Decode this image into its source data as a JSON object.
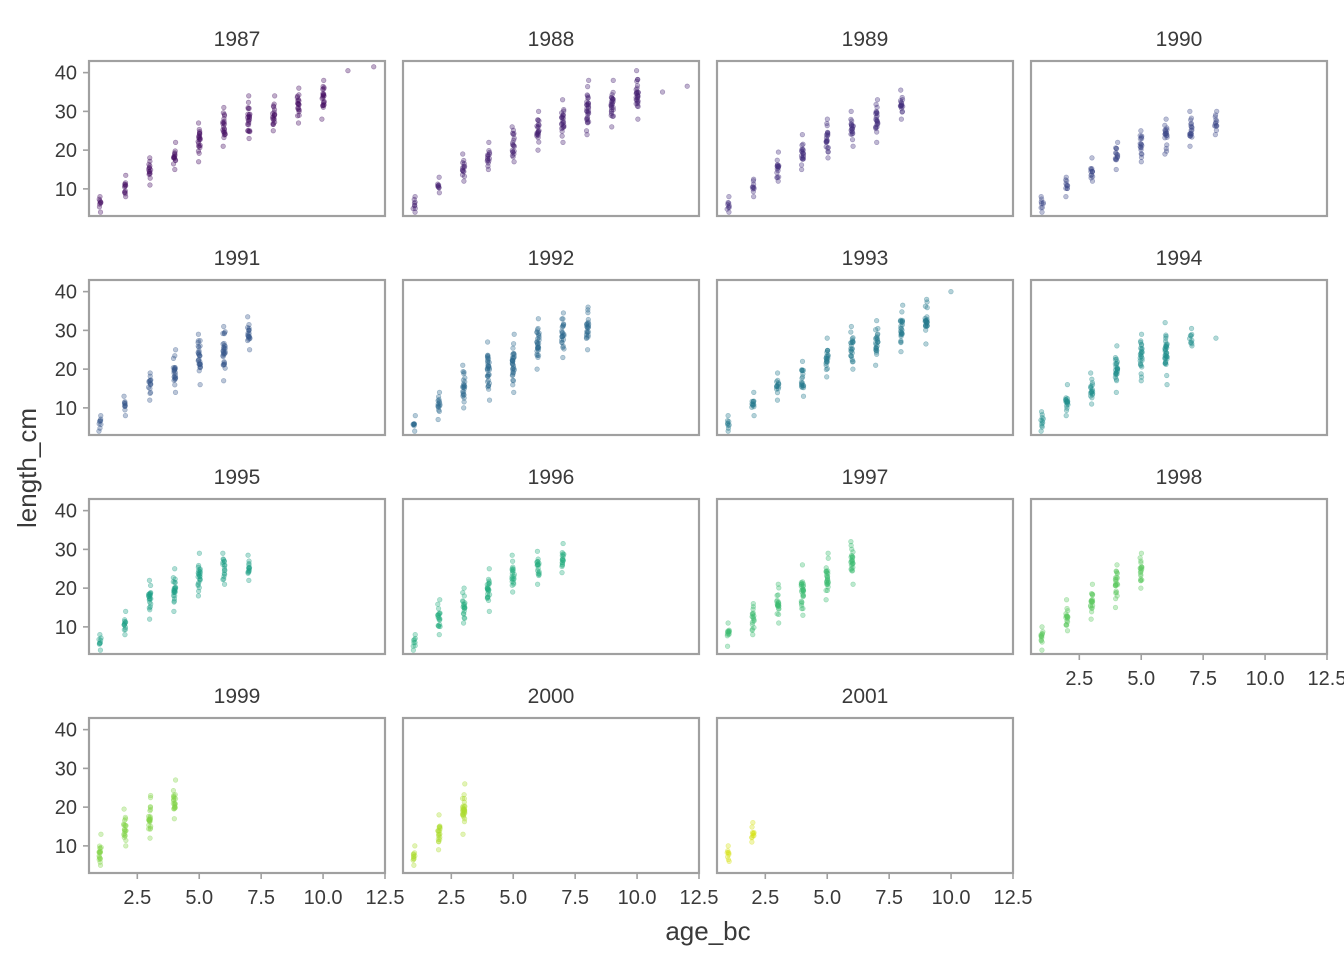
{
  "chart_data": {
    "type": "scatter",
    "layout": "faceted grid, 4 columns",
    "xlabel": "age_bc",
    "ylabel": "length_cm",
    "xlim": [
      0.55,
      12.5
    ],
    "ylim": [
      3,
      43
    ],
    "x_ticks": [
      2.5,
      5.0,
      7.5,
      10.0,
      12.5
    ],
    "x_tick_labels": [
      "2.5",
      "5.0",
      "7.5",
      "10.0",
      "12.5"
    ],
    "y_ticks": [
      10,
      20,
      30,
      40
    ],
    "y_tick_labels": [
      "10",
      "20",
      "30",
      "40"
    ],
    "point_alpha": 0.35,
    "color_scale": "viridis by year (1987 dark purple → 2001 yellow)",
    "panels": [
      {
        "label": "1987",
        "color": "#471063",
        "groups": [
          [
            1,
            4,
            6,
            8
          ],
          [
            2,
            8,
            8,
            13.5
          ],
          [
            3,
            11,
            11,
            18
          ],
          [
            4,
            15,
            15,
            22
          ],
          [
            5,
            17,
            17,
            27
          ],
          [
            6,
            21,
            21,
            31
          ],
          [
            7,
            23,
            23,
            34
          ],
          [
            8,
            25,
            25,
            34
          ],
          [
            9,
            27,
            27,
            36
          ],
          [
            10,
            28,
            28,
            38
          ],
          [
            11,
            40.5,
            40.5,
            40.5
          ],
          [
            12,
            41.5,
            41.5,
            41.5
          ]
        ]
      },
      {
        "label": "1988",
        "color": "#482374",
        "groups": [
          [
            1,
            4,
            6,
            8
          ],
          [
            2,
            9,
            9,
            13
          ],
          [
            3,
            12,
            12,
            19
          ],
          [
            4,
            15,
            15,
            22
          ],
          [
            5,
            17,
            17,
            26
          ],
          [
            6,
            20,
            20,
            30
          ],
          [
            7,
            22,
            22,
            33
          ],
          [
            8,
            24,
            24,
            38
          ],
          [
            9,
            26,
            26,
            38
          ],
          [
            10,
            28,
            28,
            40.5
          ],
          [
            11,
            35,
            35,
            35
          ],
          [
            12,
            36.5,
            36.5,
            36.5
          ]
        ]
      },
      {
        "label": "1989",
        "color": "#46307e",
        "groups": [
          [
            1,
            4,
            6,
            8
          ],
          [
            2,
            8,
            8,
            12.5
          ],
          [
            3,
            12,
            12,
            19.5
          ],
          [
            4,
            15,
            15,
            24
          ],
          [
            5,
            18,
            18,
            28
          ],
          [
            6,
            21,
            21,
            30
          ],
          [
            7,
            22,
            22,
            33
          ],
          [
            8,
            28,
            28,
            35.5
          ]
        ]
      },
      {
        "label": "1990",
        "color": "#3f4a8a",
        "groups": [
          [
            1,
            4,
            6,
            8
          ],
          [
            2,
            8,
            8,
            13
          ],
          [
            3,
            12,
            12,
            18
          ],
          [
            4,
            15,
            15,
            22
          ],
          [
            5,
            17,
            17,
            25
          ],
          [
            6,
            19,
            19,
            28
          ],
          [
            7,
            21,
            21,
            30
          ],
          [
            8,
            24,
            24,
            30
          ]
        ]
      },
      {
        "label": "1991",
        "color": "#38588c",
        "groups": [
          [
            1,
            4,
            6,
            8
          ],
          [
            2,
            8,
            8,
            13
          ],
          [
            3,
            12,
            12,
            19
          ],
          [
            4,
            14,
            14,
            25
          ],
          [
            5,
            16,
            16,
            29
          ],
          [
            6,
            17,
            17,
            31
          ],
          [
            7,
            25,
            25,
            33.5
          ]
        ]
      },
      {
        "label": "1992",
        "color": "#2f6b8e",
        "groups": [
          [
            1,
            4,
            6,
            8
          ],
          [
            2,
            7,
            7,
            14
          ],
          [
            3,
            10,
            10,
            21
          ],
          [
            4,
            12,
            12,
            27
          ],
          [
            5,
            14,
            14,
            29
          ],
          [
            6,
            20,
            20,
            33
          ],
          [
            7,
            23,
            23,
            34.5
          ],
          [
            8,
            25,
            25,
            36
          ]
        ]
      },
      {
        "label": "1993",
        "color": "#287c8e",
        "groups": [
          [
            1,
            4,
            6,
            8
          ],
          [
            2,
            8,
            8,
            14
          ],
          [
            3,
            12,
            12,
            19
          ],
          [
            4,
            13,
            13,
            22
          ],
          [
            5,
            18,
            18,
            28
          ],
          [
            6,
            20,
            20,
            31
          ],
          [
            7,
            21,
            21,
            32.5
          ],
          [
            8,
            24.5,
            24.5,
            36.5
          ],
          [
            9,
            26.5,
            26.5,
            38
          ],
          [
            10,
            40,
            40,
            40
          ]
        ]
      },
      {
        "label": "1994",
        "color": "#21908d",
        "groups": [
          [
            1,
            4,
            6,
            9
          ],
          [
            2,
            8,
            8,
            16
          ],
          [
            3,
            11,
            11,
            19
          ],
          [
            4,
            14,
            14,
            26
          ],
          [
            5,
            17,
            17,
            29
          ],
          [
            6,
            16,
            16,
            32
          ],
          [
            7,
            26,
            26,
            30.5
          ],
          [
            8,
            28,
            28,
            28
          ]
        ]
      },
      {
        "label": "1995",
        "color": "#1fa088",
        "groups": [
          [
            1,
            4,
            6,
            8
          ],
          [
            2,
            8,
            8,
            14
          ],
          [
            3,
            12,
            12,
            22
          ],
          [
            4,
            14,
            14,
            25
          ],
          [
            5,
            18,
            18,
            29
          ],
          [
            6,
            21,
            21,
            29
          ],
          [
            7,
            22,
            22,
            28.5
          ]
        ]
      },
      {
        "label": "1996",
        "color": "#28ae80",
        "groups": [
          [
            1,
            4,
            6,
            8
          ],
          [
            2,
            8,
            8,
            17
          ],
          [
            3,
            11,
            11,
            20
          ],
          [
            4,
            14,
            14,
            25
          ],
          [
            5,
            19,
            19,
            28.5
          ],
          [
            6,
            21,
            21,
            29.5
          ],
          [
            7,
            24,
            24,
            31.5
          ]
        ]
      },
      {
        "label": "1997",
        "color": "#3fbc73",
        "groups": [
          [
            1,
            5,
            7,
            11
          ],
          [
            2,
            8,
            8,
            16
          ],
          [
            3,
            11,
            11,
            21
          ],
          [
            4,
            13,
            13,
            26
          ],
          [
            5,
            17,
            17,
            29
          ],
          [
            6,
            21,
            21,
            32
          ]
        ]
      },
      {
        "label": "1998",
        "color": "#5ec962",
        "groups": [
          [
            1,
            4,
            6,
            10
          ],
          [
            2,
            9,
            9,
            17
          ],
          [
            3,
            12,
            12,
            21
          ],
          [
            4,
            15,
            15,
            26
          ],
          [
            5,
            20,
            20,
            29
          ]
        ]
      },
      {
        "label": "1999",
        "color": "#84d44b",
        "groups": [
          [
            1,
            5,
            7,
            13
          ],
          [
            2,
            10,
            10,
            19.5
          ],
          [
            3,
            12,
            12,
            23
          ],
          [
            4,
            17,
            17,
            27
          ]
        ]
      },
      {
        "label": "2000",
        "color": "#addc30",
        "groups": [
          [
            1,
            5,
            7,
            10
          ],
          [
            2,
            9,
            9,
            18
          ],
          [
            3,
            13,
            13,
            26
          ]
        ]
      },
      {
        "label": "2001",
        "color": "#d8e219",
        "groups": [
          [
            1,
            6,
            7,
            10
          ],
          [
            2,
            11,
            11,
            16
          ]
        ]
      }
    ]
  }
}
